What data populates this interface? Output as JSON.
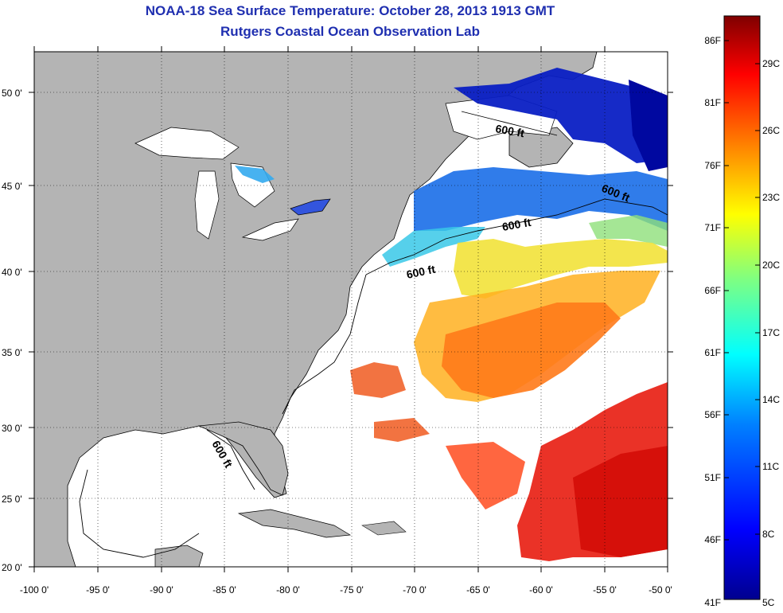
{
  "title": {
    "line1": "NOAA-18 Sea Surface Temperature:  October 28, 2013 1913 GMT",
    "line2": "Rutgers Coastal Ocean Observation Lab"
  },
  "axes": {
    "lon_ticks": [
      "-100 0'",
      "-95 0'",
      "-90 0'",
      "-85 0'",
      "-80 0'",
      "-75 0'",
      "-70 0'",
      "-65 0'",
      "-60 0'",
      "-55 0'",
      "-50 0'"
    ],
    "lat_ticks": [
      "50 0'",
      "45 0'",
      "40 0'",
      "35 0'",
      "30 0'",
      "25 0'",
      "20 0'"
    ]
  },
  "contour_labels": [
    "600 ft",
    "600 ft",
    "600 ft",
    "600 ft",
    "600 ft"
  ],
  "colorbar": {
    "fahrenheit": [
      "86F",
      "81F",
      "76F",
      "71F",
      "66F",
      "61F",
      "56F",
      "51F",
      "46F",
      "41F"
    ],
    "celsius": [
      "29C",
      "26C",
      "23C",
      "20C",
      "17C",
      "14C",
      "11C",
      "8C",
      "5C"
    ],
    "colors": [
      "#7f0000",
      "#ff0000",
      "#ff8000",
      "#ffff00",
      "#80ff80",
      "#00ffff",
      "#0080ff",
      "#0000ff",
      "#00008f"
    ]
  },
  "colors": {
    "land": "#b4b4b4",
    "water": "#ffffff",
    "title": "#1f2fb0"
  }
}
